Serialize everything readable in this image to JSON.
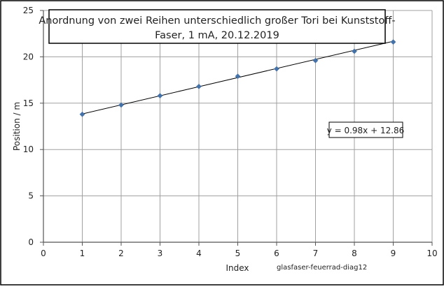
{
  "chart_data": {
    "type": "scatter",
    "title": "Anordnung von zwei Reihen unterschiedlich großer Tori bei Kunststoff-Faser, 1 mA, 20.12.2019",
    "title_lines": [
      "Anordnung von zwei Reihen unterschiedlich großer Tori bei Kunststoff-",
      "Faser, 1 mA, 20.12.2019"
    ],
    "xlabel": "Index",
    "ylabel": "Position / m",
    "xlim": [
      0,
      10
    ],
    "ylim": [
      0,
      25
    ],
    "x_ticks": [
      0,
      1,
      2,
      3,
      4,
      5,
      6,
      7,
      8,
      9,
      10
    ],
    "y_ticks": [
      0,
      5,
      10,
      15,
      20,
      25
    ],
    "grid": true,
    "series": [
      {
        "x": [
          1,
          2,
          3,
          4,
          5,
          6,
          7,
          8,
          9
        ],
        "y": [
          13.8,
          14.8,
          15.8,
          16.8,
          17.9,
          18.7,
          19.6,
          20.6,
          21.6
        ]
      }
    ],
    "trendline": {
      "slope": 0.98,
      "intercept": 12.86,
      "x_range": [
        1,
        9
      ],
      "equation_label": "y = 0.98x + 12.86"
    },
    "marker_color": "#4472a8",
    "line_color": "#000000",
    "grid_color": "#a0a0a0"
  },
  "annotations": {
    "file_label": "glasfaser-feuerrad-diag12"
  }
}
